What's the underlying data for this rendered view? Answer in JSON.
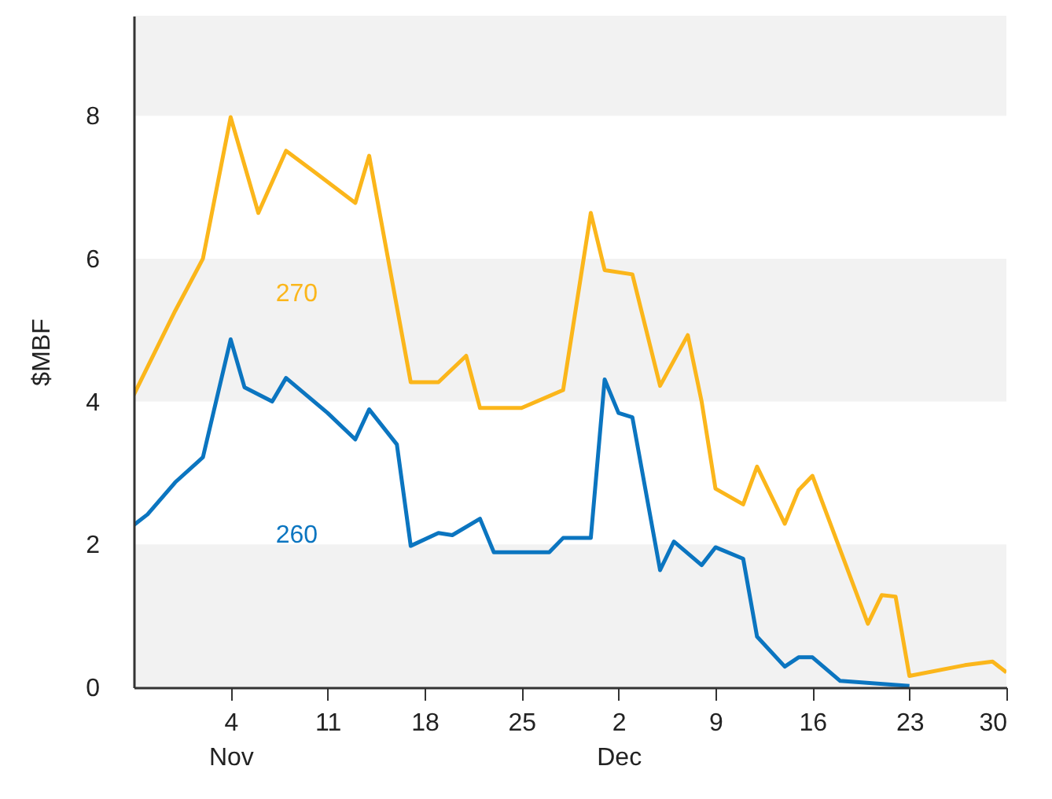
{
  "chart_data": {
    "type": "line",
    "ylabel": "$MBF",
    "xlim": [
      "--10-28",
      "--12-30"
    ],
    "xticks": [
      {
        "value": "--11-04",
        "label": "4\nNov"
      },
      {
        "value": "--11-11",
        "label": "11"
      },
      {
        "value": "--11-18",
        "label": "18"
      },
      {
        "value": "--11-25",
        "label": "25"
      },
      {
        "value": "--12-02",
        "label": "2\nDec"
      },
      {
        "value": "--12-09",
        "label": "9"
      },
      {
        "value": "--12-16",
        "label": "16"
      },
      {
        "value": "--12-23",
        "label": "23"
      },
      {
        "value": "--12-30",
        "label": "30"
      }
    ],
    "ylim": [
      0,
      9.4
    ],
    "yticks": [
      0,
      2,
      4,
      6,
      8
    ],
    "grid": false,
    "legend": false,
    "bands": [
      {
        "axis": "y",
        "from": 0,
        "to": 2,
        "color": "#f2f2f2"
      },
      {
        "axis": "y",
        "from": 4,
        "to": 6,
        "color": "#f2f2f2"
      },
      {
        "axis": "y",
        "from": 8,
        "to": 9.4,
        "color": "#f2f2f2"
      }
    ],
    "series": [
      {
        "name": "270",
        "color": "#fbb61b",
        "x": [
          "--10-28",
          "--10-31",
          "--11-02",
          "--11-04",
          "--11-06",
          "--11-08",
          "--11-10",
          "--11-13",
          "--11-14",
          "--11-17",
          "--11-19",
          "--11-21",
          "--11-22",
          "--11-25",
          "--11-28",
          "--11-30",
          "--12-01",
          "--12-03",
          "--12-05",
          "--12-07",
          "--12-08",
          "--12-09",
          "--12-11",
          "--12-12",
          "--12-14",
          "--12-15",
          "--12-16",
          "--12-20",
          "--12-21",
          "--12-22",
          "--12-23",
          "--12-27",
          "--12-29",
          "--12-30"
        ],
        "values": [
          4.09,
          5.27,
          6.0,
          7.98,
          6.64,
          7.51,
          7.22,
          6.78,
          7.44,
          4.27,
          4.27,
          4.64,
          3.91,
          3.91,
          4.16,
          6.64,
          5.84,
          5.78,
          4.22,
          4.93,
          4.0,
          2.78,
          2.56,
          3.09,
          2.29,
          2.76,
          2.96,
          0.89,
          1.29,
          1.27,
          0.16,
          0.31,
          0.36,
          0.21
        ]
      },
      {
        "name": "260",
        "color": "#0b75c0",
        "x": [
          "--10-28",
          "--10-29",
          "--10-31",
          "--11-02",
          "--11-04",
          "--11-05",
          "--11-07",
          "--11-08",
          "--11-11",
          "--11-13",
          "--11-14",
          "--11-16",
          "--11-17",
          "--11-19",
          "--11-20",
          "--11-22",
          "--11-23",
          "--11-27",
          "--11-28",
          "--11-30",
          "--12-01",
          "--12-02",
          "--12-03",
          "--12-05",
          "--12-06",
          "--12-08",
          "--12-09",
          "--12-11",
          "--12-12",
          "--12-14",
          "--12-15",
          "--12-16",
          "--12-18",
          "--12-23"
        ],
        "values": [
          2.27,
          2.42,
          2.87,
          3.22,
          4.87,
          4.2,
          4.0,
          4.33,
          3.84,
          3.47,
          3.89,
          3.4,
          1.98,
          2.16,
          2.13,
          2.36,
          1.89,
          1.89,
          2.09,
          2.09,
          4.31,
          3.84,
          3.78,
          1.64,
          2.04,
          1.71,
          1.96,
          1.8,
          0.71,
          0.29,
          0.42,
          0.42,
          0.09,
          0.02
        ]
      }
    ]
  }
}
